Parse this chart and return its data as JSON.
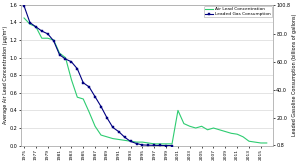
{
  "years": [
    1975,
    1976,
    1977,
    1978,
    1979,
    1980,
    1981,
    1982,
    1983,
    1984,
    1985,
    1986,
    1987,
    1988,
    1989,
    1990,
    1991,
    1992,
    1993,
    1994,
    1995,
    1996,
    1997,
    1998,
    1999,
    2000,
    2001,
    2002,
    2003,
    2004,
    2005,
    2006,
    2007,
    2008,
    2009,
    2010,
    2011,
    2012,
    2013,
    2014,
    2015,
    2016
  ],
  "air_lead": [
    1.45,
    1.38,
    1.35,
    1.22,
    1.22,
    1.2,
    1.05,
    1.0,
    0.75,
    0.55,
    0.53,
    0.38,
    0.22,
    0.12,
    0.1,
    0.08,
    0.07,
    0.06,
    0.05,
    0.04,
    0.04,
    0.03,
    0.02,
    0.02,
    0.02,
    0.02,
    0.4,
    0.25,
    0.22,
    0.2,
    0.22,
    0.18,
    0.2,
    0.18,
    0.16,
    0.14,
    0.13,
    0.1,
    0.05,
    0.04,
    0.03,
    0.03
  ],
  "leaded_gas_years": [
    1975,
    1976,
    1977,
    1978,
    1979,
    1980,
    1981,
    1982,
    1983,
    1984,
    1985,
    1986,
    1987,
    1988,
    1989,
    1990,
    1991,
    1992,
    1993,
    1994,
    1995,
    1996,
    1997,
    1998,
    1999,
    2000
  ],
  "leaded_gas": [
    100.0,
    88.0,
    85.0,
    82.0,
    80.0,
    75.0,
    65.0,
    62.0,
    60.0,
    55.0,
    45.0,
    42.0,
    35.0,
    28.0,
    20.0,
    13.0,
    10.0,
    6.0,
    3.0,
    1.5,
    0.5,
    0.3,
    0.2,
    0.1,
    0.05,
    0.02
  ],
  "air_lead_color": "#2ecc71",
  "leaded_gas_color": "#000080",
  "ylabel_left": "Average Air Lead Concentration (μg/m³)",
  "ylabel_right": "Leaded Gasoline Consumption (billions of gallons)",
  "ylim_left": [
    0.0,
    1.6
  ],
  "ylim_right": [
    0.0,
    100.8
  ],
  "yticks_left": [
    0.0,
    0.2,
    0.4,
    0.6,
    0.8,
    1.0,
    1.2,
    1.4,
    1.6
  ],
  "yticks_right": [
    0.8,
    20.0,
    40.0,
    60.0,
    80.0,
    100.8
  ],
  "ytick_right_labels": [
    "0.8",
    "20.0",
    "40.0",
    "60.0",
    "80.0",
    "100.8"
  ],
  "xtick_years": [
    1975,
    1977,
    1979,
    1981,
    1983,
    1985,
    1987,
    1989,
    1991,
    1993,
    1995,
    1997,
    1999,
    2001,
    2003,
    2005,
    2007,
    2009,
    2011,
    2013,
    2015
  ],
  "legend_labels": [
    "Air Lead Concentration",
    "Leaded Gas Consumption"
  ],
  "background_color": "#ffffff",
  "grid_color": "#d0d0d0"
}
